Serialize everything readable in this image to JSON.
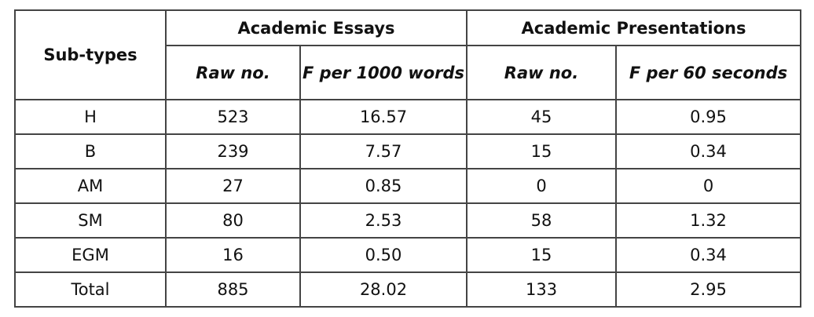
{
  "table": {
    "corner": "Sub-types",
    "groups": [
      "Academic Essays",
      "Academic Presentations"
    ],
    "columns": [
      "Raw no.",
      "F per 1000 words",
      "Raw no.",
      "F per 60 seconds"
    ],
    "rows": [
      [
        "H",
        "523",
        "16.57",
        "45",
        "0.95"
      ],
      [
        "B",
        "239",
        "7.57",
        "15",
        "0.34"
      ],
      [
        "AM",
        "27",
        "0.85",
        "0",
        "0"
      ],
      [
        "SM",
        "80",
        "2.53",
        "58",
        "1.32"
      ],
      [
        "EGM",
        "16",
        "0.50",
        "15",
        "0.34"
      ],
      [
        "Total",
        "885",
        "28.02",
        "133",
        "2.95"
      ]
    ]
  }
}
